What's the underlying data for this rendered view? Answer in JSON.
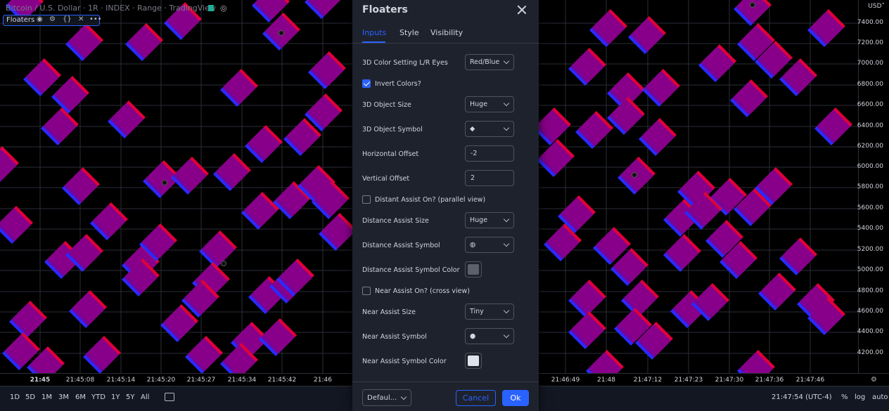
{
  "header": {
    "symbol_title": "Bitcoin / U.S. Dollar · 1R · INDEX · Range · TradingView",
    "indicator_name": "Floaters"
  },
  "price_axis": {
    "currency": "USD˅",
    "labels": [
      "7400.00",
      "7200.00",
      "7000.00",
      "6800.00",
      "6600.00",
      "6400.00",
      "6200.00",
      "6000.00",
      "5800.00",
      "5600.00",
      "5400.00",
      "5200.00",
      "5000.00",
      "4800.00",
      "4600.00",
      "4400.00",
      "4200.00"
    ]
  },
  "time_axis": {
    "labels": [
      "21:45",
      "21:45:08",
      "21:45:14",
      "21:45:20",
      "21:45:27",
      "21:45:34",
      "21:45:42",
      "21:46",
      "21:46:49",
      "21:48",
      "21:47:12",
      "21:47:23",
      "21:47:30",
      "21:47:36",
      "21:47:46"
    ]
  },
  "bottom_toolbar": {
    "ranges": [
      "1D",
      "5D",
      "1M",
      "3M",
      "6M",
      "YTD",
      "1Y",
      "5Y",
      "All"
    ],
    "clock": "21:47:54 (UTC-4)",
    "percent": "%",
    "log": "log",
    "auto": "auto"
  },
  "dialog": {
    "title": "Floaters",
    "tabs": [
      "Inputs",
      "Style",
      "Visibility"
    ],
    "rows": {
      "color_setting": {
        "label": "3D Color Setting L/R Eyes",
        "value": "Red/Blue"
      },
      "invert_colors": {
        "label": "Invert Colors?",
        "checked": true
      },
      "object_size": {
        "label": "3D Object Size",
        "value": "Huge"
      },
      "object_symbol": {
        "label": "3D Object Symbol",
        "value": "◆"
      },
      "horizontal_offset": {
        "label": "Horizontal Offset",
        "value": "-2"
      },
      "vertical_offset": {
        "label": "Vertical Offset",
        "value": "2"
      },
      "distant_assist_on": {
        "label": "Distant Assist On? (parallel view)",
        "checked": false
      },
      "distance_assist_size": {
        "label": "Distance Assist Size",
        "value": "Huge"
      },
      "distance_assist_symbol": {
        "label": "Distance Assist Symbol",
        "value": "◍"
      },
      "distance_assist_color": {
        "label": "Distance Assist Symbol Color",
        "color": "#5d606b"
      },
      "near_assist_on": {
        "label": "Near Assist On? (cross view)",
        "checked": false
      },
      "near_assist_size": {
        "label": "Near Assist Size",
        "value": "Tiny"
      },
      "near_assist_symbol": {
        "label": "Near Assist Symbol",
        "value": "●"
      },
      "near_assist_color": {
        "label": "Near Assist Symbol Color",
        "color": "#e0e3eb"
      }
    },
    "footer": {
      "defaults": "Defaul...",
      "cancel": "Cancel",
      "ok": "Ok"
    }
  },
  "colors": {
    "accent": "#2962ff",
    "shape_blue": "#2a2aff",
    "shape_red": "#e0003a",
    "shape_purple": "#800090"
  }
}
